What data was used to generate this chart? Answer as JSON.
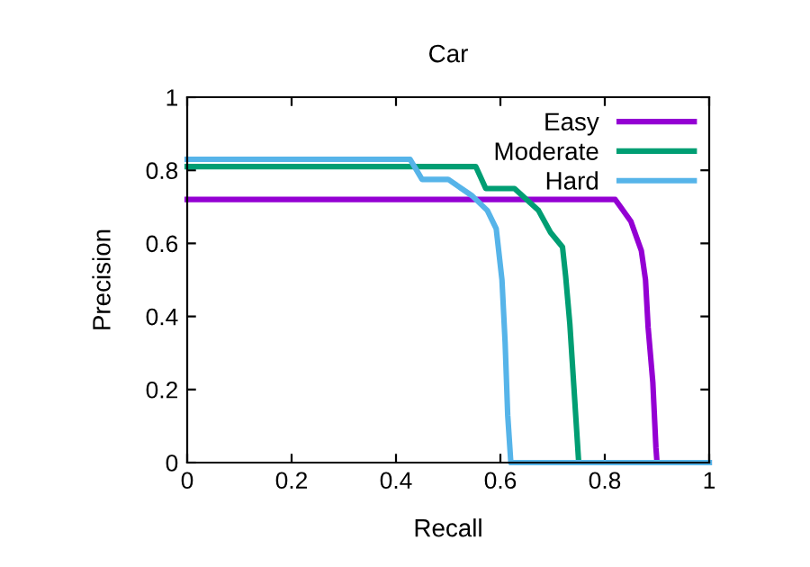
{
  "chart_data": {
    "type": "line",
    "title": "Car",
    "xlabel": "Recall",
    "ylabel": "Precision",
    "xlim": [
      0,
      1
    ],
    "ylim": [
      0,
      1
    ],
    "xticks": [
      0,
      {
        "value": 0.2,
        "label": "0.2"
      },
      {
        "value": 0.4,
        "label": "0.4"
      },
      {
        "value": 0.6,
        "label": "0.6"
      },
      {
        "value": 0.8,
        "label": "0.8"
      },
      1
    ],
    "yticks": [
      0,
      {
        "value": 0.2,
        "label": "0.2"
      },
      {
        "value": 0.4,
        "label": "0.4"
      },
      {
        "value": 0.6,
        "label": "0.6"
      },
      {
        "value": 0.8,
        "label": "0.8"
      },
      1
    ],
    "grid": false,
    "legend": "top right",
    "marker": "none",
    "line_style": "solid",
    "series": [
      {
        "name": "Easy",
        "color": "#9400d3",
        "x": [
          0,
          0.82,
          0.83,
          0.85,
          0.87,
          0.878,
          0.883,
          0.892,
          0.898,
          0.9,
          1
        ],
        "values": [
          0.72,
          0.72,
          0.7,
          0.66,
          0.58,
          0.5,
          0.37,
          0.22,
          0.04,
          0,
          0
        ]
      },
      {
        "name": "Moderate",
        "color": "#009e73",
        "x": [
          0,
          0.553,
          0.572,
          0.627,
          0.673,
          0.696,
          0.719,
          0.725,
          0.733,
          0.742,
          0.75,
          1
        ],
        "values": [
          0.81,
          0.81,
          0.75,
          0.75,
          0.69,
          0.63,
          0.59,
          0.51,
          0.38,
          0.18,
          0,
          0
        ]
      },
      {
        "name": "Hard",
        "color": "#56b4e9",
        "x": [
          0,
          0.427,
          0.45,
          0.5,
          0.546,
          0.575,
          0.592,
          0.603,
          0.609,
          0.614,
          0.62,
          1
        ],
        "values": [
          0.83,
          0.83,
          0.775,
          0.775,
          0.73,
          0.69,
          0.64,
          0.5,
          0.33,
          0.13,
          0,
          0
        ]
      }
    ]
  }
}
